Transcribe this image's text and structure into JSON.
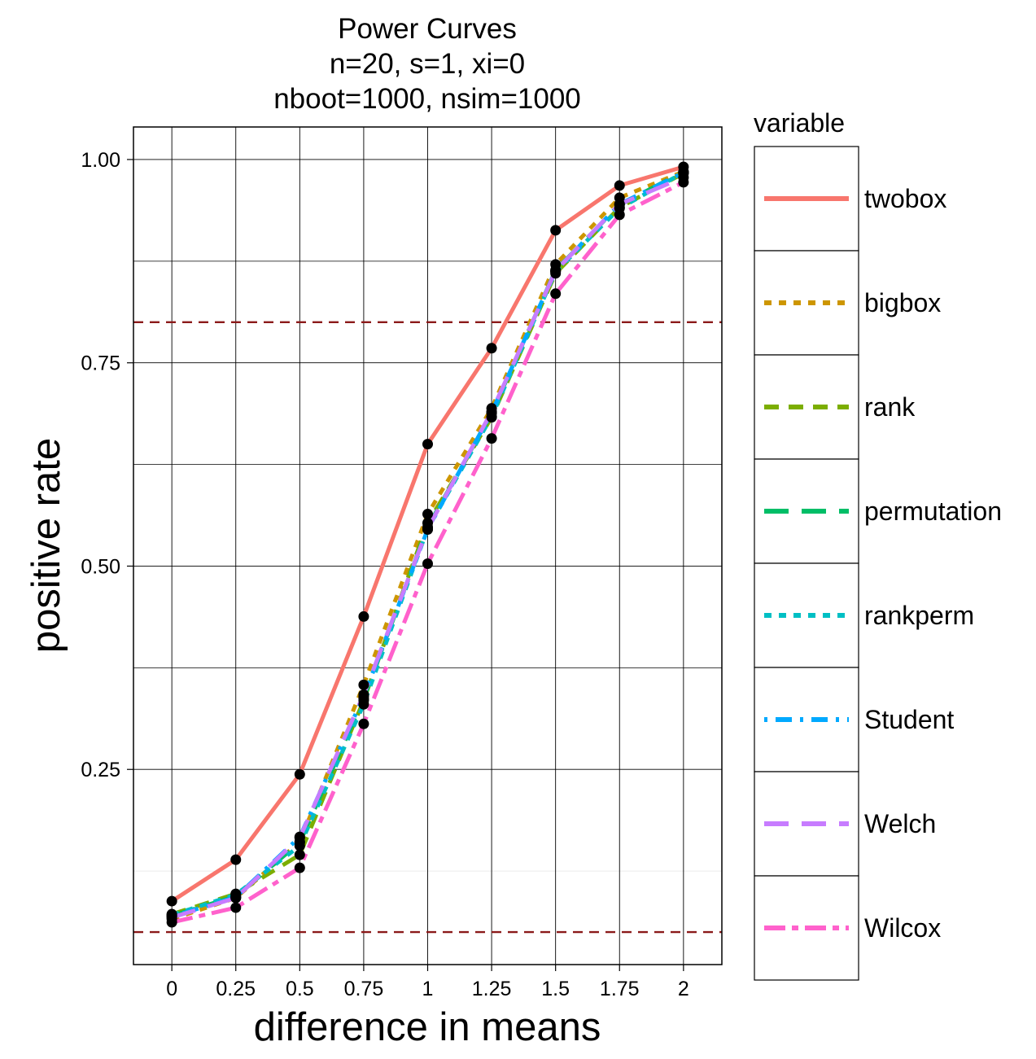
{
  "chart_data": {
    "type": "line",
    "title": [
      "Power Curves",
      "n=20, s=1, xi=0",
      "nboot=1000, nsim=1000"
    ],
    "xlabel": "difference in means",
    "ylabel": "positive rate",
    "x": [
      0,
      0.25,
      0.5,
      0.75,
      1,
      1.25,
      1.5,
      1.75,
      2
    ],
    "x_tick_labels": [
      "0",
      "0.25",
      "0.5",
      "0.75",
      "1",
      "1.25",
      "1.5",
      "1.75",
      "2"
    ],
    "y_ticks": [
      0.25,
      0.5,
      0.75,
      1.0
    ],
    "y_tick_labels": [
      "0.25",
      "0.50",
      "0.75",
      "1.00"
    ],
    "xlim": [
      -0.15,
      2.15
    ],
    "ylim": [
      0.01,
      1.04
    ],
    "grid": true,
    "reference_lines": [
      0.05,
      0.8
    ],
    "reference_line_color": "#8b1a1a",
    "legend": {
      "title": "variable",
      "position": "right"
    },
    "series": [
      {
        "name": "twobox",
        "color": "#f8766d",
        "dash": "solid",
        "values": [
          0.088,
          0.139,
          0.244,
          0.438,
          0.65,
          0.768,
          0.913,
          0.968,
          0.991
        ]
      },
      {
        "name": "bigbox",
        "color": "#cd9600",
        "dash": "dotted",
        "values": [
          0.066,
          0.092,
          0.161,
          0.354,
          0.564,
          0.694,
          0.871,
          0.953,
          0.985
        ]
      },
      {
        "name": "rank",
        "color": "#7cae00",
        "dash": "dashed",
        "values": [
          0.072,
          0.097,
          0.145,
          0.335,
          0.553,
          0.683,
          0.86,
          0.941,
          0.983
        ]
      },
      {
        "name": "permutation",
        "color": "#00be67",
        "dash": "longdash",
        "values": [
          0.07,
          0.094,
          0.16,
          0.337,
          0.548,
          0.688,
          0.864,
          0.944,
          0.985
        ]
      },
      {
        "name": "rankperm",
        "color": "#00bfc4",
        "dash": "dotted",
        "values": [
          0.071,
          0.096,
          0.156,
          0.33,
          0.546,
          0.684,
          0.862,
          0.94,
          0.984
        ]
      },
      {
        "name": "Student",
        "color": "#00a9ff",
        "dash": "dotdash",
        "values": [
          0.069,
          0.093,
          0.167,
          0.34,
          0.545,
          0.689,
          0.863,
          0.945,
          0.984
        ]
      },
      {
        "name": "Welch",
        "color": "#c77cff",
        "dash": "longdash",
        "values": [
          0.068,
          0.092,
          0.166,
          0.342,
          0.546,
          0.69,
          0.863,
          0.945,
          0.978
        ]
      },
      {
        "name": "Wilcox",
        "color": "#ff61cc",
        "dash": "twodash",
        "values": [
          0.062,
          0.08,
          0.129,
          0.306,
          0.503,
          0.657,
          0.835,
          0.932,
          0.972
        ]
      }
    ]
  }
}
